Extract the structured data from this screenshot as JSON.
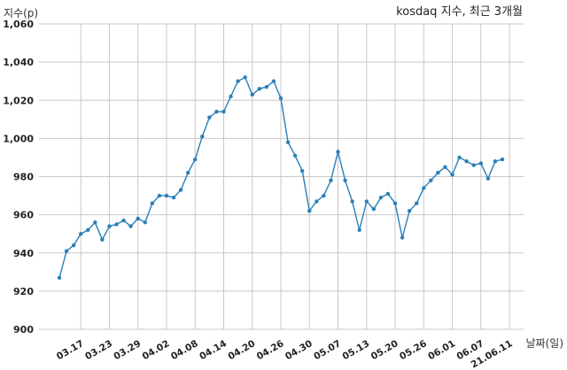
{
  "chart_data": {
    "type": "line",
    "title": "kosdaq 지수, 최근 3개월",
    "xlabel": "날짜(일)",
    "ylabel": "지수(p)",
    "ylim": [
      900,
      1060
    ],
    "yticks": [
      "900",
      "920",
      "940",
      "960",
      "980",
      "1,000",
      "1,020",
      "1,040",
      "1,060"
    ],
    "ytick_values": [
      900,
      920,
      940,
      960,
      980,
      1000,
      1020,
      1040,
      1060
    ],
    "xtick_labels": [
      "03.17",
      "03.23",
      "03.29",
      "04.02",
      "04.08",
      "04.14",
      "04.20",
      "04.26",
      "04.30",
      "05.07",
      "05.13",
      "05.20",
      "05.26",
      "06.01",
      "06.07",
      "21.06.11"
    ],
    "xtick_index": [
      3,
      7,
      11,
      15,
      19,
      23,
      27,
      31,
      35,
      39,
      43,
      47,
      51,
      55,
      59,
      63
    ],
    "grid": true,
    "series": [
      {
        "color": "#2a7fb8",
        "values": [
          927,
          941,
          944,
          950,
          952,
          956,
          947,
          954,
          955,
          957,
          954,
          958,
          956,
          966,
          970,
          970,
          969,
          973,
          982,
          989,
          1001,
          1011,
          1014,
          1014,
          1022,
          1030,
          1032,
          1023,
          1026,
          1027,
          1030,
          1021,
          998,
          991,
          983,
          962,
          967,
          970,
          978,
          993,
          978,
          967,
          952,
          967,
          963,
          969,
          971,
          966,
          948,
          962,
          966,
          974,
          978,
          982,
          985,
          981,
          990,
          988,
          986,
          987,
          979,
          988,
          989
        ]
      }
    ]
  }
}
